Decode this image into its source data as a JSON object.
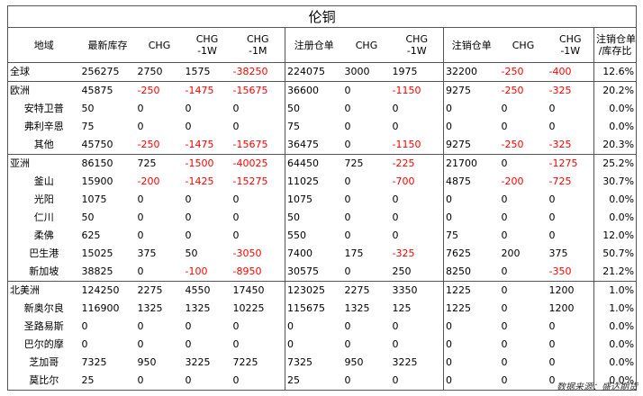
{
  "title": "伦铜",
  "headers": [
    "地域",
    "最新库存",
    "CHG",
    "CHG\n-1W",
    "CHG\n-1M",
    "注册仓单",
    "CHG",
    "CHG\n-1W",
    "注销仓单",
    "CHG",
    "CHG\n-1W",
    "注销仓单\n/库存比"
  ],
  "rows": [
    {
      "region": "全球",
      "level": "group",
      "values": [
        "256275",
        "2750",
        "1575",
        "-38250",
        "224075",
        "3000",
        "1975",
        "32200",
        "-250",
        "-400",
        "12.6%"
      ]
    },
    {
      "region": "欧洲",
      "level": "group",
      "values": [
        "45875",
        "-250",
        "-1475",
        "-15675",
        "36600",
        "0",
        "-1150",
        "9275",
        "-250",
        "-325",
        "20.2%"
      ]
    },
    {
      "region": "安特卫普",
      "level": "sub",
      "values": [
        "50",
        "0",
        "0",
        "0",
        "50",
        "0",
        "0",
        "0",
        "0",
        "0",
        "0.0%"
      ]
    },
    {
      "region": "弗利辛恩",
      "level": "sub",
      "values": [
        "75",
        "0",
        "0",
        "0",
        "75",
        "0",
        "0",
        "0",
        "0",
        "0",
        "0.0%"
      ]
    },
    {
      "region": "其他",
      "level": "sub",
      "values": [
        "45750",
        "-250",
        "-1475",
        "-15675",
        "36475",
        "0",
        "-1150",
        "9275",
        "-250",
        "-325",
        "20.3%"
      ]
    },
    {
      "region": "亚洲",
      "level": "group",
      "values": [
        "86150",
        "725",
        "-1500",
        "-40025",
        "64450",
        "725",
        "-225",
        "21700",
        "0",
        "-1275",
        "25.2%"
      ]
    },
    {
      "region": "釜山",
      "level": "sub",
      "values": [
        "15900",
        "-200",
        "-1425",
        "-15275",
        "11025",
        "0",
        "-700",
        "4875",
        "-200",
        "-725",
        "30.7%"
      ]
    },
    {
      "region": "光阳",
      "level": "sub",
      "values": [
        "1075",
        "0",
        "0",
        "0",
        "1075",
        "0",
        "0",
        "0",
        "0",
        "0",
        "0.0%"
      ]
    },
    {
      "region": "仁川",
      "level": "sub",
      "values": [
        "50",
        "0",
        "0",
        "0",
        "50",
        "0",
        "0",
        "0",
        "0",
        "0",
        "0.0%"
      ]
    },
    {
      "region": "柔佛",
      "level": "sub",
      "values": [
        "625",
        "0",
        "0",
        "0",
        "550",
        "0",
        "0",
        "75",
        "0",
        "0",
        "12.0%"
      ]
    },
    {
      "region": "巴生港",
      "level": "sub",
      "values": [
        "15025",
        "375",
        "50",
        "-3050",
        "7400",
        "175",
        "-325",
        "7625",
        "200",
        "375",
        "50.7%"
      ]
    },
    {
      "region": "新加坡",
      "level": "sub",
      "values": [
        "38825",
        "0",
        "-100",
        "-8950",
        "30575",
        "0",
        "250",
        "8250",
        "0",
        "-350",
        "21.2%"
      ]
    },
    {
      "region": "北美洲",
      "level": "group",
      "values": [
        "124250",
        "2275",
        "4550",
        "17450",
        "123025",
        "2275",
        "3350",
        "1225",
        "0",
        "1200",
        "1.0%"
      ]
    },
    {
      "region": "新奥尔良",
      "level": "sub",
      "values": [
        "116900",
        "1325",
        "1325",
        "10225",
        "115675",
        "1325",
        "125",
        "1225",
        "0",
        "1200",
        "1.0%"
      ]
    },
    {
      "region": "圣路易斯",
      "level": "sub",
      "values": [
        "0",
        "0",
        "0",
        "0",
        "0",
        "0",
        "0",
        "0",
        "0",
        "0",
        "0.0%"
      ]
    },
    {
      "region": "巴尔的摩",
      "level": "sub",
      "values": [
        "0",
        "0",
        "0",
        "0",
        "0",
        "0",
        "0",
        "0",
        "0",
        "0",
        "0.0%"
      ]
    },
    {
      "region": "芝加哥",
      "level": "sub",
      "values": [
        "7325",
        "950",
        "3225",
        "7225",
        "7325",
        "950",
        "3225",
        "0",
        "0",
        "0",
        "0.0%"
      ]
    },
    {
      "region": "莫比尔",
      "level": "sub",
      "values": [
        "25",
        "0",
        "0",
        "0",
        "25",
        "0",
        "0",
        "0",
        "0",
        "0",
        "0.0%"
      ]
    }
  ],
  "source": "数据来源：盛达期货",
  "colors": {
    "negative": "#ff0000",
    "text": "#000000",
    "border": "#555555"
  }
}
